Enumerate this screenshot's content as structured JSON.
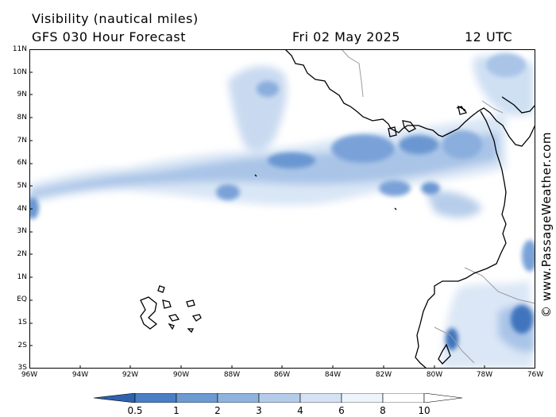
{
  "header": {
    "title": "Visibility (nautical miles)",
    "subtitle": "GFS 030 Hour Forecast",
    "date": "Fri 02 May 2025",
    "time": "12 UTC"
  },
  "credit": "© www.PassageWeather.com",
  "axes": {
    "lat_labels": [
      "11N",
      "10N",
      "9N",
      "8N",
      "7N",
      "6N",
      "5N",
      "4N",
      "3N",
      "2N",
      "1N",
      "EQ",
      "1S",
      "2S",
      "3S"
    ],
    "lon_labels": [
      "96W",
      "94W",
      "92W",
      "90W",
      "88W",
      "86W",
      "84W",
      "82W",
      "80W",
      "78W",
      "76W"
    ]
  },
  "legend": {
    "labels": [
      "0.5",
      "1",
      "2",
      "3",
      "4",
      "6",
      "8",
      "10"
    ],
    "colors": [
      "#2e62ad",
      "#4a7fc3",
      "#6d9ad1",
      "#8fb3dd",
      "#b4cce9",
      "#d4e2f3",
      "#eef4fb"
    ]
  },
  "colors": {
    "land_outline": "#000000",
    "border": "#9a9a9a",
    "fog_dark": "#3f74bd",
    "fog_mid": "#79a2d6",
    "fog_light": "#c6d8ef",
    "fog_pale": "#e6eef8"
  }
}
